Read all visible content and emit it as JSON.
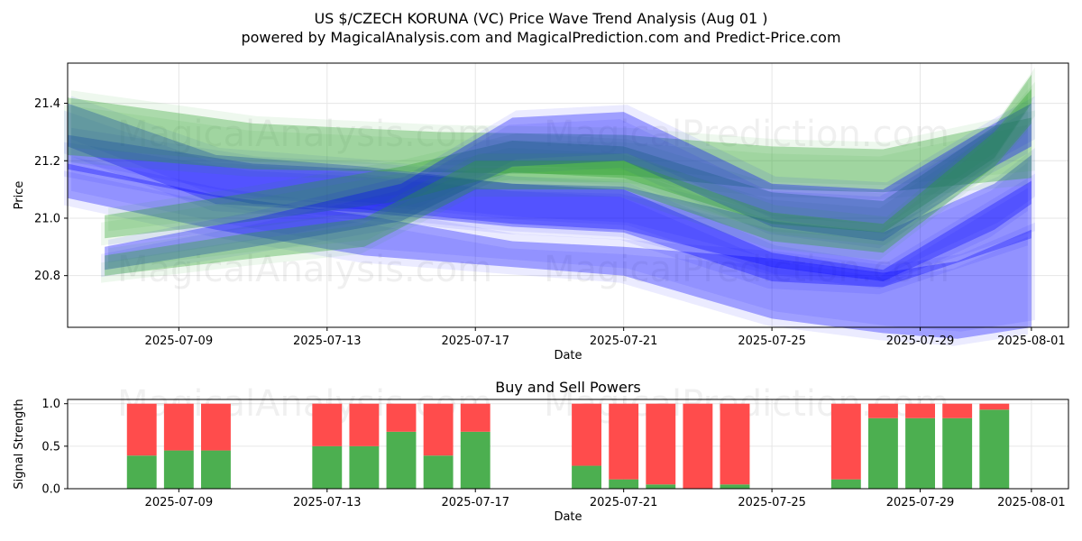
{
  "title": "US $/CZECH KORUNA (VC) Price Wave Trend Analysis (Aug 01 )",
  "subtitle": "powered by MagicalAnalysis.com and MagicalPrediction.com and Predict-Price.com",
  "watermarks": [
    "MagicalAnalysis.com",
    "MagicalPrediction.com"
  ],
  "colors": {
    "buy": "#4caf50",
    "sell": "#ff4c4c",
    "blue_band": "#0000ff",
    "green_band": "#2ca02c",
    "grid": "#e6e6e6"
  },
  "chart_data": [
    {
      "type": "area",
      "title": "",
      "xlabel": "Date",
      "ylabel": "Price",
      "xlim": [
        "2025-07-06",
        "2025-08-02"
      ],
      "ylim": [
        20.62,
        21.54
      ],
      "xticks": [
        "2025-07-09",
        "2025-07-13",
        "2025-07-17",
        "2025-07-21",
        "2025-07-25",
        "2025-07-29",
        "2025-08-01"
      ],
      "yticks": [
        20.8,
        21.0,
        21.2,
        21.4
      ],
      "grid": true,
      "series": [
        {
          "name": "blue-band-upper",
          "color": "blue",
          "x": [
            "2025-07-06",
            "2025-07-11",
            "2025-07-14",
            "2025-07-18",
            "2025-07-21",
            "2025-07-25",
            "2025-07-28",
            "2025-07-31",
            "2025-08-01"
          ],
          "upper": [
            21.29,
            21.19,
            21.17,
            21.12,
            21.11,
            20.99,
            20.95,
            21.12,
            21.22
          ],
          "lower": [
            21.17,
            21.05,
            21.03,
            20.98,
            20.96,
            20.83,
            20.78,
            20.96,
            21.05
          ]
        },
        {
          "name": "blue-band-lower",
          "color": "blue",
          "x": [
            "2025-07-06",
            "2025-07-10",
            "2025-07-14",
            "2025-07-18",
            "2025-07-21",
            "2025-07-25",
            "2025-07-28",
            "2025-07-30",
            "2025-08-01"
          ],
          "upper": [
            21.19,
            21.08,
            21.01,
            20.92,
            20.9,
            20.86,
            20.81,
            20.85,
            20.96
          ],
          "lower": [
            21.07,
            20.96,
            20.87,
            20.83,
            20.8,
            20.65,
            20.6,
            20.58,
            20.62
          ]
        },
        {
          "name": "blue-band-diagonal",
          "color": "blue",
          "x": [
            "2025-07-06",
            "2025-07-10",
            "2025-07-14",
            "2025-07-18",
            "2025-07-21",
            "2025-07-25",
            "2025-07-28",
            "2025-08-01"
          ],
          "upper": [
            21.4,
            21.22,
            21.18,
            21.12,
            21.1,
            20.88,
            20.82,
            21.13
          ],
          "lower": [
            21.25,
            21.05,
            21.02,
            20.97,
            20.95,
            20.78,
            20.76,
            20.93
          ]
        },
        {
          "name": "green-band-top",
          "color": "green",
          "x": [
            "2025-07-06",
            "2025-07-11",
            "2025-07-16",
            "2025-07-21",
            "2025-07-25",
            "2025-07-28",
            "2025-08-01"
          ],
          "upper": [
            21.42,
            21.33,
            21.3,
            21.29,
            21.25,
            21.24,
            21.35
          ],
          "lower": [
            21.22,
            21.17,
            21.16,
            21.15,
            21.1,
            21.09,
            21.14
          ]
        },
        {
          "name": "green-wave",
          "color": "green",
          "x": [
            "2025-07-07",
            "2025-07-11",
            "2025-07-15",
            "2025-07-18",
            "2025-07-21",
            "2025-07-25",
            "2025-07-28",
            "2025-07-31",
            "2025-08-01"
          ],
          "upper": [
            21.01,
            21.09,
            21.18,
            21.27,
            21.25,
            21.09,
            21.06,
            21.32,
            21.5
          ],
          "lower": [
            20.93,
            20.99,
            21.06,
            21.16,
            21.14,
            20.98,
            20.95,
            21.21,
            21.4
          ]
        },
        {
          "name": "blue-light-wave",
          "color": "blue",
          "x": [
            "2025-07-07",
            "2025-07-11",
            "2025-07-15",
            "2025-07-18",
            "2025-07-21",
            "2025-07-25",
            "2025-07-28",
            "2025-07-31",
            "2025-08-01"
          ],
          "upper": [
            20.9,
            21.0,
            21.12,
            21.35,
            21.37,
            21.12,
            21.1,
            21.33,
            21.4
          ],
          "lower": [
            20.82,
            20.9,
            20.99,
            21.18,
            21.2,
            20.97,
            20.92,
            21.18,
            21.25
          ]
        },
        {
          "name": "green-wave-low",
          "color": "green",
          "x": [
            "2025-07-07",
            "2025-07-11",
            "2025-07-14",
            "2025-07-17",
            "2025-07-21",
            "2025-07-25",
            "2025-07-28",
            "2025-07-31",
            "2025-08-01"
          ],
          "upper": [
            20.87,
            20.95,
            21.0,
            21.2,
            21.2,
            21.02,
            20.98,
            21.3,
            21.45
          ],
          "lower": [
            20.8,
            20.86,
            20.9,
            21.1,
            21.1,
            20.92,
            20.88,
            21.18,
            21.33
          ]
        }
      ]
    },
    {
      "type": "bar",
      "title": "Buy and Sell Powers",
      "xlabel": "Date",
      "ylabel": "Signal Strength",
      "xlim": [
        "2025-07-06",
        "2025-08-02"
      ],
      "ylim": [
        0,
        1.05
      ],
      "xticks": [
        "2025-07-09",
        "2025-07-13",
        "2025-07-17",
        "2025-07-21",
        "2025-07-25",
        "2025-07-29",
        "2025-08-01"
      ],
      "yticks": [
        0.0,
        0.5,
        1.0
      ],
      "grid": true,
      "categories": [
        "2025-07-08",
        "2025-07-09",
        "2025-07-10",
        "2025-07-13",
        "2025-07-14",
        "2025-07-15",
        "2025-07-16",
        "2025-07-17",
        "2025-07-20",
        "2025-07-21",
        "2025-07-22",
        "2025-07-23",
        "2025-07-24",
        "2025-07-27",
        "2025-07-28",
        "2025-07-29",
        "2025-07-30",
        "2025-07-31"
      ],
      "series": [
        {
          "name": "Buy",
          "values": [
            0.39,
            0.45,
            0.45,
            0.5,
            0.5,
            0.67,
            0.39,
            0.67,
            0.27,
            0.11,
            0.05,
            0.0,
            0.05,
            0.11,
            0.83,
            0.83,
            0.83,
            0.93
          ]
        },
        {
          "name": "Sell",
          "values": [
            0.61,
            0.55,
            0.55,
            0.5,
            0.5,
            0.33,
            0.61,
            0.33,
            0.73,
            0.89,
            0.95,
            1.0,
            0.95,
            0.89,
            0.17,
            0.17,
            0.17,
            0.07
          ]
        }
      ]
    }
  ]
}
